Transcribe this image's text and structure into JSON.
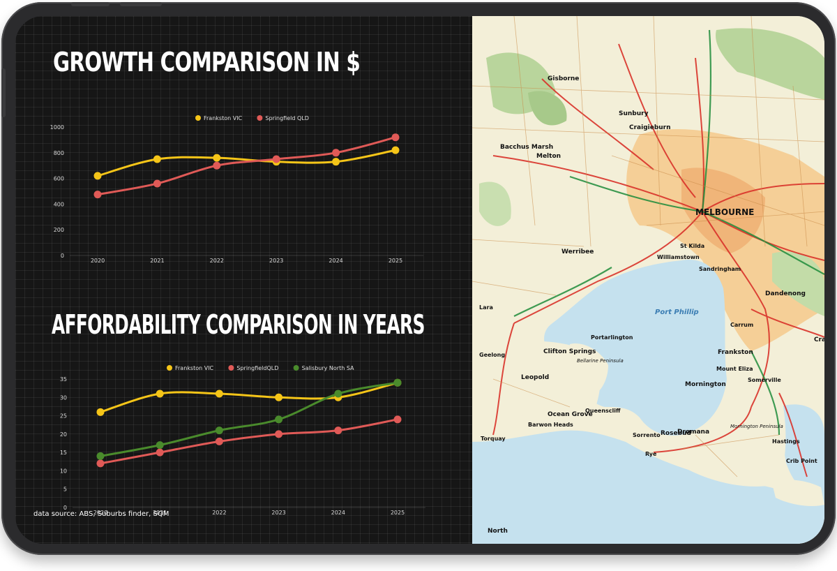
{
  "charts": {
    "growth": {
      "title": "GROWTH COMPARISON IN $"
    },
    "affordability": {
      "title": "AFFORDABILITY COMPARISON IN YEARS"
    }
  },
  "source_note": "data source: ABS, Suburbs finder, SQM",
  "map": {
    "labels": [
      "MELBOURNE",
      "Port Phillip",
      "Frankston",
      "Dandenong",
      "Mornington",
      "Werribee",
      "Melton",
      "Sunbury",
      "Craigieburn",
      "Gisborne",
      "Bacchus Marsh",
      "Geelong",
      "Lara",
      "Sorrento",
      "Rosebud",
      "Dromana",
      "Hastings",
      "Crib Point",
      "Torquay",
      "Ocean Grove",
      "Clifton Springs",
      "Portarlington",
      "Queenscliff",
      "Mount Eliza",
      "Carrum",
      "St Kilda",
      "Sandringham",
      "Williamstown",
      "Somerville",
      "Rye",
      "Leopold",
      "Barwon Heads",
      "North",
      "Cranb",
      "Bellarine Peninsula",
      "Mornington Peninsula"
    ]
  },
  "colors": {
    "frankston": "#f5c518",
    "springfield": "#e05a57",
    "salisbury": "#4a8b2c",
    "background": "#161616"
  },
  "chart_data": [
    {
      "type": "line",
      "title": "GROWTH COMPARISON IN $",
      "x": [
        "2020",
        "2021",
        "2022",
        "2023",
        "2024",
        "2025"
      ],
      "yticks": [
        0,
        200,
        400,
        600,
        800,
        1000
      ],
      "ylim": [
        0,
        1000
      ],
      "legend_position": "top-center",
      "grid": true,
      "series": [
        {
          "name": "Frankston VIC",
          "color": "#f5c518",
          "values": [
            620,
            750,
            760,
            730,
            730,
            820
          ]
        },
        {
          "name": "Springfield QLD",
          "color": "#e05a57",
          "values": [
            475,
            560,
            700,
            750,
            800,
            920
          ]
        }
      ]
    },
    {
      "type": "line",
      "title": "AFFORDABILITY COMPARISON IN YEARS",
      "x": [
        "2020",
        "2021",
        "2022",
        "2023",
        "2024",
        "2025"
      ],
      "yticks": [
        0,
        5,
        10,
        15,
        20,
        25,
        30,
        35
      ],
      "ylim": [
        0,
        35
      ],
      "legend_position": "top-center",
      "grid": true,
      "series": [
        {
          "name": "Frankston VIC",
          "color": "#f5c518",
          "values": [
            26,
            31,
            31,
            30,
            30,
            34
          ]
        },
        {
          "name": "SpringfieldQLD",
          "color": "#e05a57",
          "values": [
            12,
            15,
            18,
            20,
            21,
            24
          ]
        },
        {
          "name": "Salisbury North SA",
          "color": "#4a8b2c",
          "values": [
            14,
            17,
            21,
            24,
            31,
            34
          ]
        }
      ]
    }
  ]
}
